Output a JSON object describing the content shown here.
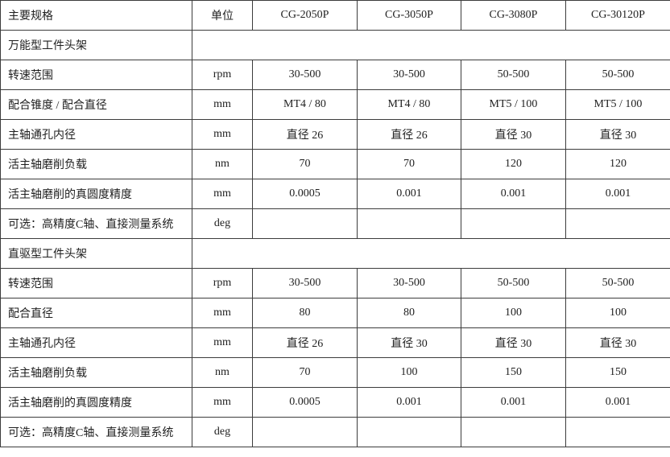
{
  "colors": {
    "border": "#3c3c3c",
    "text": "#1f1f1f",
    "background": "#ffffff"
  },
  "table": {
    "columns": [
      "主要规格",
      "单位",
      "CG-2050P",
      "CG-3050P",
      "CG-3080P",
      "CG-30120P"
    ],
    "rows": [
      {
        "type": "section",
        "label": "万能型工件头架"
      },
      {
        "type": "data",
        "label": "转速范围",
        "unit": "rpm",
        "values": [
          "30-500",
          "30-500",
          "50-500",
          "50-500"
        ]
      },
      {
        "type": "data",
        "label": "配合锥度 / 配合直径",
        "unit": "mm",
        "values": [
          "MT4 / 80",
          "MT4 / 80",
          "MT5 / 100",
          "MT5 / 100"
        ]
      },
      {
        "type": "data",
        "label": "主轴通孔内径",
        "unit": "mm",
        "values": [
          "直径 26",
          "直径 26",
          "直径 30",
          "直径 30"
        ]
      },
      {
        "type": "data",
        "label": "活主轴磨削负载",
        "unit": "nm",
        "values": [
          "70",
          "70",
          "120",
          "120"
        ]
      },
      {
        "type": "data",
        "label": "活主轴磨削的真圆度精度",
        "unit": "mm",
        "values": [
          "0.0005",
          "0.001",
          "0.001",
          "0.001"
        ]
      },
      {
        "type": "data",
        "label": "可选：高精度C轴、直接测量系统",
        "unit": "deg",
        "values": [
          "",
          "",
          "",
          ""
        ]
      },
      {
        "type": "section",
        "label": "直驱型工件头架"
      },
      {
        "type": "data",
        "label": "转速范围",
        "unit": "rpm",
        "values": [
          "30-500",
          "30-500",
          "50-500",
          "50-500"
        ]
      },
      {
        "type": "data",
        "label": "配合直径",
        "unit": "mm",
        "values": [
          "80",
          "80",
          "100",
          "100"
        ]
      },
      {
        "type": "data",
        "label": "主轴通孔内径",
        "unit": "mm",
        "values": [
          "直径 26",
          "直径 30",
          "直径 30",
          "直径 30"
        ]
      },
      {
        "type": "data",
        "label": "活主轴磨削负载",
        "unit": "nm",
        "values": [
          "70",
          "100",
          "150",
          "150"
        ]
      },
      {
        "type": "data",
        "label": "活主轴磨削的真圆度精度",
        "unit": "mm",
        "values": [
          "0.0005",
          "0.001",
          "0.001",
          "0.001"
        ]
      },
      {
        "type": "data",
        "label": "可选：高精度C轴、直接测量系统",
        "unit": "deg",
        "values": [
          "",
          "",
          "",
          ""
        ]
      }
    ]
  }
}
